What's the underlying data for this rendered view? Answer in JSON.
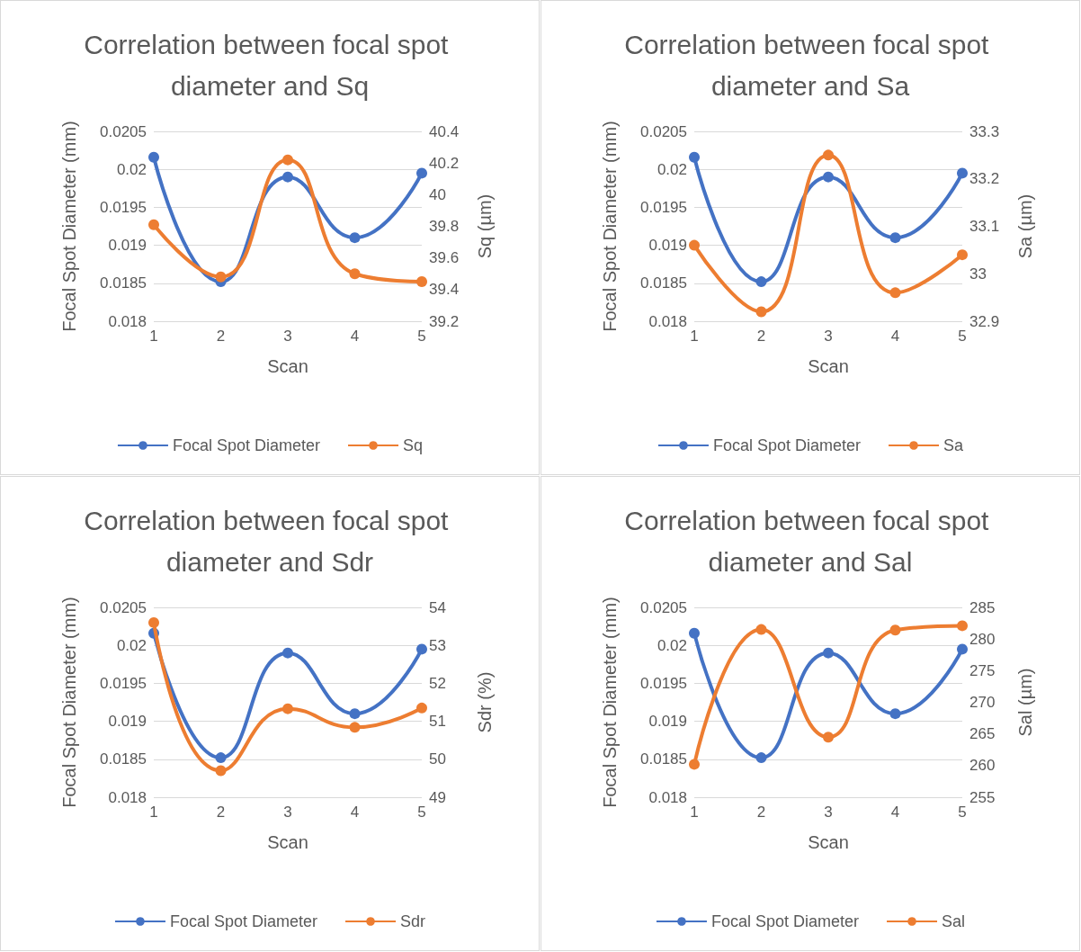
{
  "chart_data": [
    {
      "type": "line",
      "title": "Correlation between focal spot diameter and Sq",
      "xlabel": "Scan",
      "ylabel": "Focal Spot Diameter (mm)",
      "y2label": "Sq (µm)",
      "categories": [
        "1",
        "2",
        "3",
        "4",
        "5"
      ],
      "series": [
        {
          "name": "Focal Spot Diameter",
          "color": "#4472c4",
          "values": [
            0.02016,
            0.01852,
            0.0199,
            0.0191,
            0.01995
          ]
        },
        {
          "name": "Sq",
          "color": "#ed7d31",
          "axis": "y2",
          "values": [
            39.81,
            39.48,
            40.22,
            39.5,
            39.45
          ]
        }
      ],
      "ylim": [
        0.018,
        0.0205
      ],
      "yticks": [
        0.018,
        0.0185,
        0.019,
        0.0195,
        0.02,
        0.0205
      ],
      "y2lim": [
        39.2,
        40.4
      ],
      "y2ticks": [
        39.2,
        39.4,
        39.6,
        39.8,
        40,
        40.2,
        40.4
      ],
      "grid": "y",
      "legend": "bottom",
      "marker": "circle",
      "line_style": "solid"
    },
    {
      "type": "line",
      "title": "Correlation between focal spot diameter and Sa",
      "xlabel": "Scan",
      "ylabel": "Focal Spot Diameter (mm)",
      "y2label": "Sa (µm)",
      "categories": [
        "1",
        "2",
        "3",
        "4",
        "5"
      ],
      "series": [
        {
          "name": "Focal Spot Diameter",
          "color": "#4472c4",
          "values": [
            0.02016,
            0.01852,
            0.0199,
            0.0191,
            0.01995
          ]
        },
        {
          "name": "Sa",
          "color": "#ed7d31",
          "axis": "y2",
          "values": [
            33.06,
            32.92,
            33.25,
            32.96,
            33.04
          ]
        }
      ],
      "ylim": [
        0.018,
        0.0205
      ],
      "yticks": [
        0.018,
        0.0185,
        0.019,
        0.0195,
        0.02,
        0.0205
      ],
      "y2lim": [
        32.9,
        33.3
      ],
      "y2ticks": [
        32.9,
        33,
        33.1,
        33.2,
        33.3
      ],
      "grid": "y",
      "legend": "bottom",
      "marker": "circle",
      "line_style": "solid"
    },
    {
      "type": "line",
      "title": "Correlation between focal spot diameter and Sdr",
      "xlabel": "Scan",
      "ylabel": "Focal Spot Diameter (mm)",
      "y2label": "Sdr (%)",
      "categories": [
        "1",
        "2",
        "3",
        "4",
        "5"
      ],
      "series": [
        {
          "name": "Focal Spot Diameter",
          "color": "#4472c4",
          "values": [
            0.02016,
            0.01852,
            0.0199,
            0.0191,
            0.01995
          ]
        },
        {
          "name": "Sdr",
          "color": "#ed7d31",
          "axis": "y2",
          "values": [
            53.6,
            49.7,
            51.33,
            50.84,
            51.35
          ]
        }
      ],
      "ylim": [
        0.018,
        0.0205
      ],
      "yticks": [
        0.018,
        0.0185,
        0.019,
        0.0195,
        0.02,
        0.0205
      ],
      "y2lim": [
        49,
        54
      ],
      "y2ticks": [
        49,
        50,
        51,
        52,
        53,
        54
      ],
      "grid": "y",
      "legend": "bottom",
      "marker": "circle",
      "line_style": "solid"
    },
    {
      "type": "line",
      "title": "Correlation between focal spot diameter and Sal",
      "xlabel": "Scan",
      "ylabel": "Focal Spot Diameter (mm)",
      "y2label": "Sal (µm)",
      "categories": [
        "1",
        "2",
        "3",
        "4",
        "5"
      ],
      "series": [
        {
          "name": "Focal Spot Diameter",
          "color": "#4472c4",
          "values": [
            0.02016,
            0.01852,
            0.0199,
            0.0191,
            0.01995
          ]
        },
        {
          "name": "Sal",
          "color": "#ed7d31",
          "axis": "y2",
          "values": [
            260.2,
            281.5,
            264.5,
            281.4,
            282.1
          ]
        }
      ],
      "ylim": [
        0.018,
        0.0205
      ],
      "yticks": [
        0.018,
        0.0185,
        0.019,
        0.0195,
        0.02,
        0.0205
      ],
      "y2lim": [
        255,
        285
      ],
      "y2ticks": [
        255,
        260,
        265,
        270,
        275,
        280,
        285
      ],
      "grid": "y",
      "legend": "bottom",
      "marker": "circle",
      "line_style": "solid"
    }
  ]
}
